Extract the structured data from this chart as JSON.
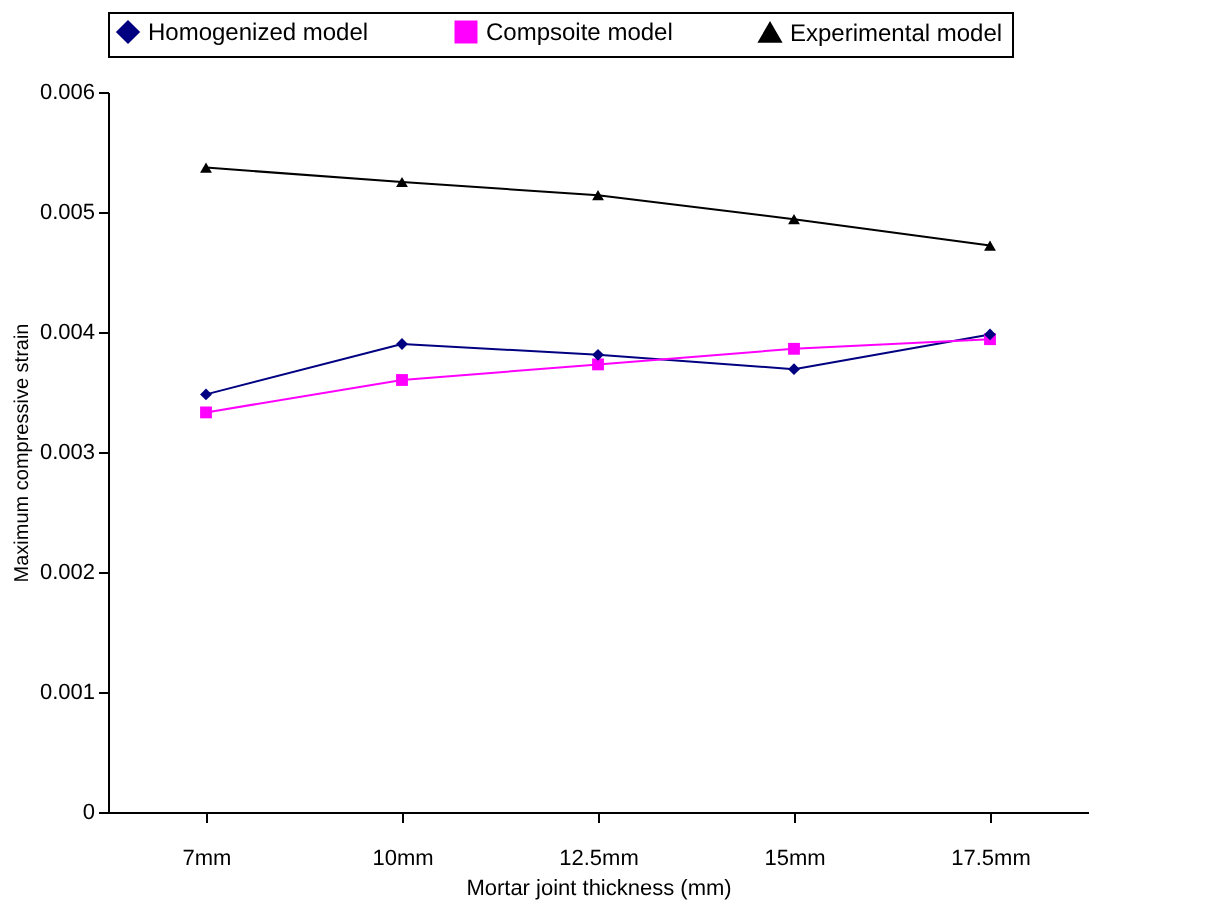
{
  "chart_data": {
    "type": "line",
    "xlabel": "Mortar joint thickness (mm)",
    "ylabel": "Maximum compressive strain",
    "categories": [
      "7mm",
      "10mm",
      "12.5mm",
      "15mm",
      "17.5mm"
    ],
    "series": [
      {
        "name": "Homogenized model",
        "color": "#000080",
        "marker": "diamond",
        "values": [
          0.00348,
          0.0039,
          0.00381,
          0.00369,
          0.00398
        ]
      },
      {
        "name": "Compsoite model",
        "color": "#ff00ff",
        "marker": "square",
        "values": [
          0.00333,
          0.0036,
          0.00373,
          0.00386,
          0.00394
        ]
      },
      {
        "name": "Experimental model",
        "color": "#000000",
        "marker": "triangle",
        "values": [
          0.00537,
          0.00525,
          0.00514,
          0.00494,
          0.00472
        ]
      }
    ],
    "ylim": [
      0,
      0.006
    ],
    "yticks": [
      0,
      0.001,
      0.002,
      0.003,
      0.004,
      0.005,
      0.006
    ],
    "grid": false,
    "legend": "top",
    "line_style": "solid"
  }
}
